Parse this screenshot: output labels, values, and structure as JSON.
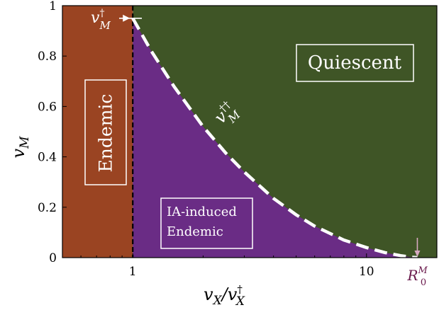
{
  "chart_data": {
    "type": "area",
    "x_scale": "log",
    "xlim": [
      0.5,
      20
    ],
    "ylim": [
      0,
      1
    ],
    "xlabel_main": "v",
    "xlabel_sub": "X",
    "xlabel_slash": "/v",
    "xlabel_dagger": "†",
    "xlabel_sub2": "X",
    "ylabel_main": "v",
    "ylabel_sub": "M",
    "x_ticks": [
      {
        "value": 1,
        "label": "1"
      },
      {
        "value": 10,
        "label": "10"
      }
    ],
    "y_ticks": [
      {
        "value": 0,
        "label": "0"
      },
      {
        "value": 0.2,
        "label": "0.2"
      },
      {
        "value": 0.4,
        "label": "0.4"
      },
      {
        "value": 0.6,
        "label": "0.6"
      },
      {
        "value": 0.8,
        "label": "0.8"
      },
      {
        "value": 1,
        "label": "1"
      }
    ],
    "vertical_boundary_x": 1,
    "curve_vM_double_dagger": {
      "x": [
        1,
        1.2,
        1.5,
        2,
        2.5,
        3,
        4,
        5,
        6,
        8,
        10,
        12,
        14,
        15.5,
        16.5
      ],
      "y": [
        0.95,
        0.82,
        0.68,
        0.52,
        0.415,
        0.34,
        0.235,
        0.17,
        0.125,
        0.07,
        0.04,
        0.02,
        0.008,
        0.002,
        0
      ]
    },
    "regions": [
      {
        "name": "Endemic",
        "color": "#9a4422"
      },
      {
        "name": "Quiescent",
        "color": "#3f5526"
      },
      {
        "name": "IA-induced Endemic",
        "color": "#6a2c85"
      }
    ],
    "annotations": {
      "vM_dagger": {
        "main": "v",
        "sup": "†",
        "sub": "M",
        "y": 0.95
      },
      "vM_double_dagger": {
        "main": "v",
        "sup": "††",
        "sub": "M"
      },
      "R0M": {
        "main": "R",
        "sup": "M",
        "sub": "0",
        "x": 16.5,
        "color": "#6a1a4c"
      }
    },
    "labels": {
      "endemic": "Endemic",
      "quiescent": "Quiescent",
      "ia_line1": "IA-induced",
      "ia_line2": "Endemic"
    }
  }
}
